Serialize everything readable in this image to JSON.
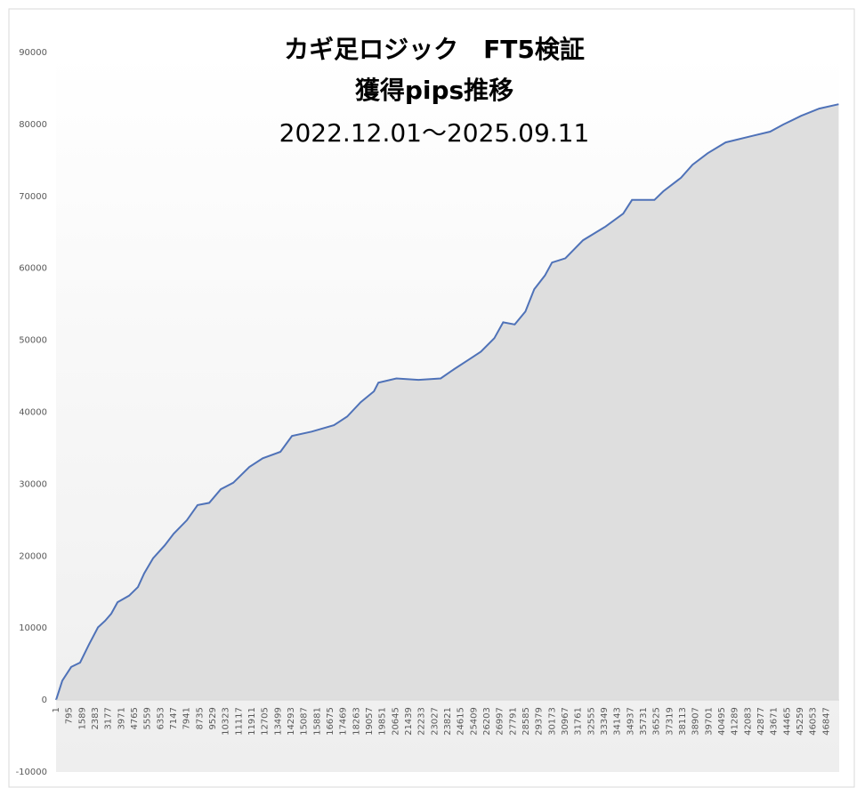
{
  "chart_data": {
    "type": "area",
    "title": "カギ足ロジック　FT5検証",
    "subtitle": "獲得pips推移",
    "period": "2022.12.01～2025.09.11",
    "x": [
      1,
      380,
      920,
      1460,
      2000,
      2550,
      2980,
      3360,
      3740,
      4440,
      4980,
      5360,
      5900,
      6610,
      7150,
      7960,
      8610,
      9320,
      10020,
      10780,
      11760,
      12570,
      13650,
      14350,
      15550,
      16900,
      17710,
      18530,
      19340,
      19610,
      20700,
      22050,
      23400,
      24220,
      25030,
      25840,
      26660,
      27200,
      27900,
      28550,
      29090,
      29740,
      30170,
      30980,
      32060,
      33420,
      34500,
      35040,
      36400,
      36940,
      38020,
      38720,
      39640,
      40730,
      42350,
      43440,
      44250,
      45330,
      46420,
      47610
    ],
    "series": [
      {
        "name": "獲得pips",
        "color": "#4f72b8",
        "values": [
          0,
          2700,
          4600,
          5200,
          7700,
          10100,
          11000,
          12000,
          13600,
          14500,
          15700,
          17600,
          19700,
          21500,
          23100,
          25000,
          27100,
          27400,
          29300,
          30200,
          32400,
          33600,
          34500,
          36700,
          37300,
          38200,
          39400,
          41400,
          42900,
          44100,
          44700,
          44500,
          44700,
          46000,
          47200,
          48400,
          50300,
          52500,
          52200,
          54000,
          57100,
          59000,
          60800,
          61400,
          63900,
          65800,
          67600,
          69500,
          69500,
          70700,
          72600,
          74400,
          76000,
          77500,
          78400,
          79000,
          80000,
          81200,
          82200,
          82800
        ]
      }
    ],
    "area_color": "#dedede",
    "xlim": [
      1,
      47640
    ],
    "xticks": [
      1,
      795,
      1589,
      2383,
      3177,
      3971,
      4765,
      5559,
      6353,
      7147,
      7941,
      8735,
      9529,
      10323,
      11117,
      11911,
      12705,
      13499,
      14293,
      15087,
      15881,
      16675,
      17469,
      18263,
      19057,
      19851,
      20645,
      21439,
      22233,
      23027,
      23821,
      24615,
      25409,
      26203,
      26997,
      27791,
      28585,
      29379,
      30173,
      30967,
      31761,
      32555,
      33349,
      34143,
      34937,
      35731,
      36525,
      37319,
      38113,
      38907,
      39701,
      40495,
      41289,
      42083,
      42877,
      43671,
      44465,
      45259,
      46053,
      46847
    ],
    "ylim": [
      -10000,
      90000
    ],
    "yticks": [
      -10000,
      0,
      10000,
      20000,
      30000,
      40000,
      50000,
      60000,
      70000,
      80000,
      90000
    ],
    "grid": false
  }
}
